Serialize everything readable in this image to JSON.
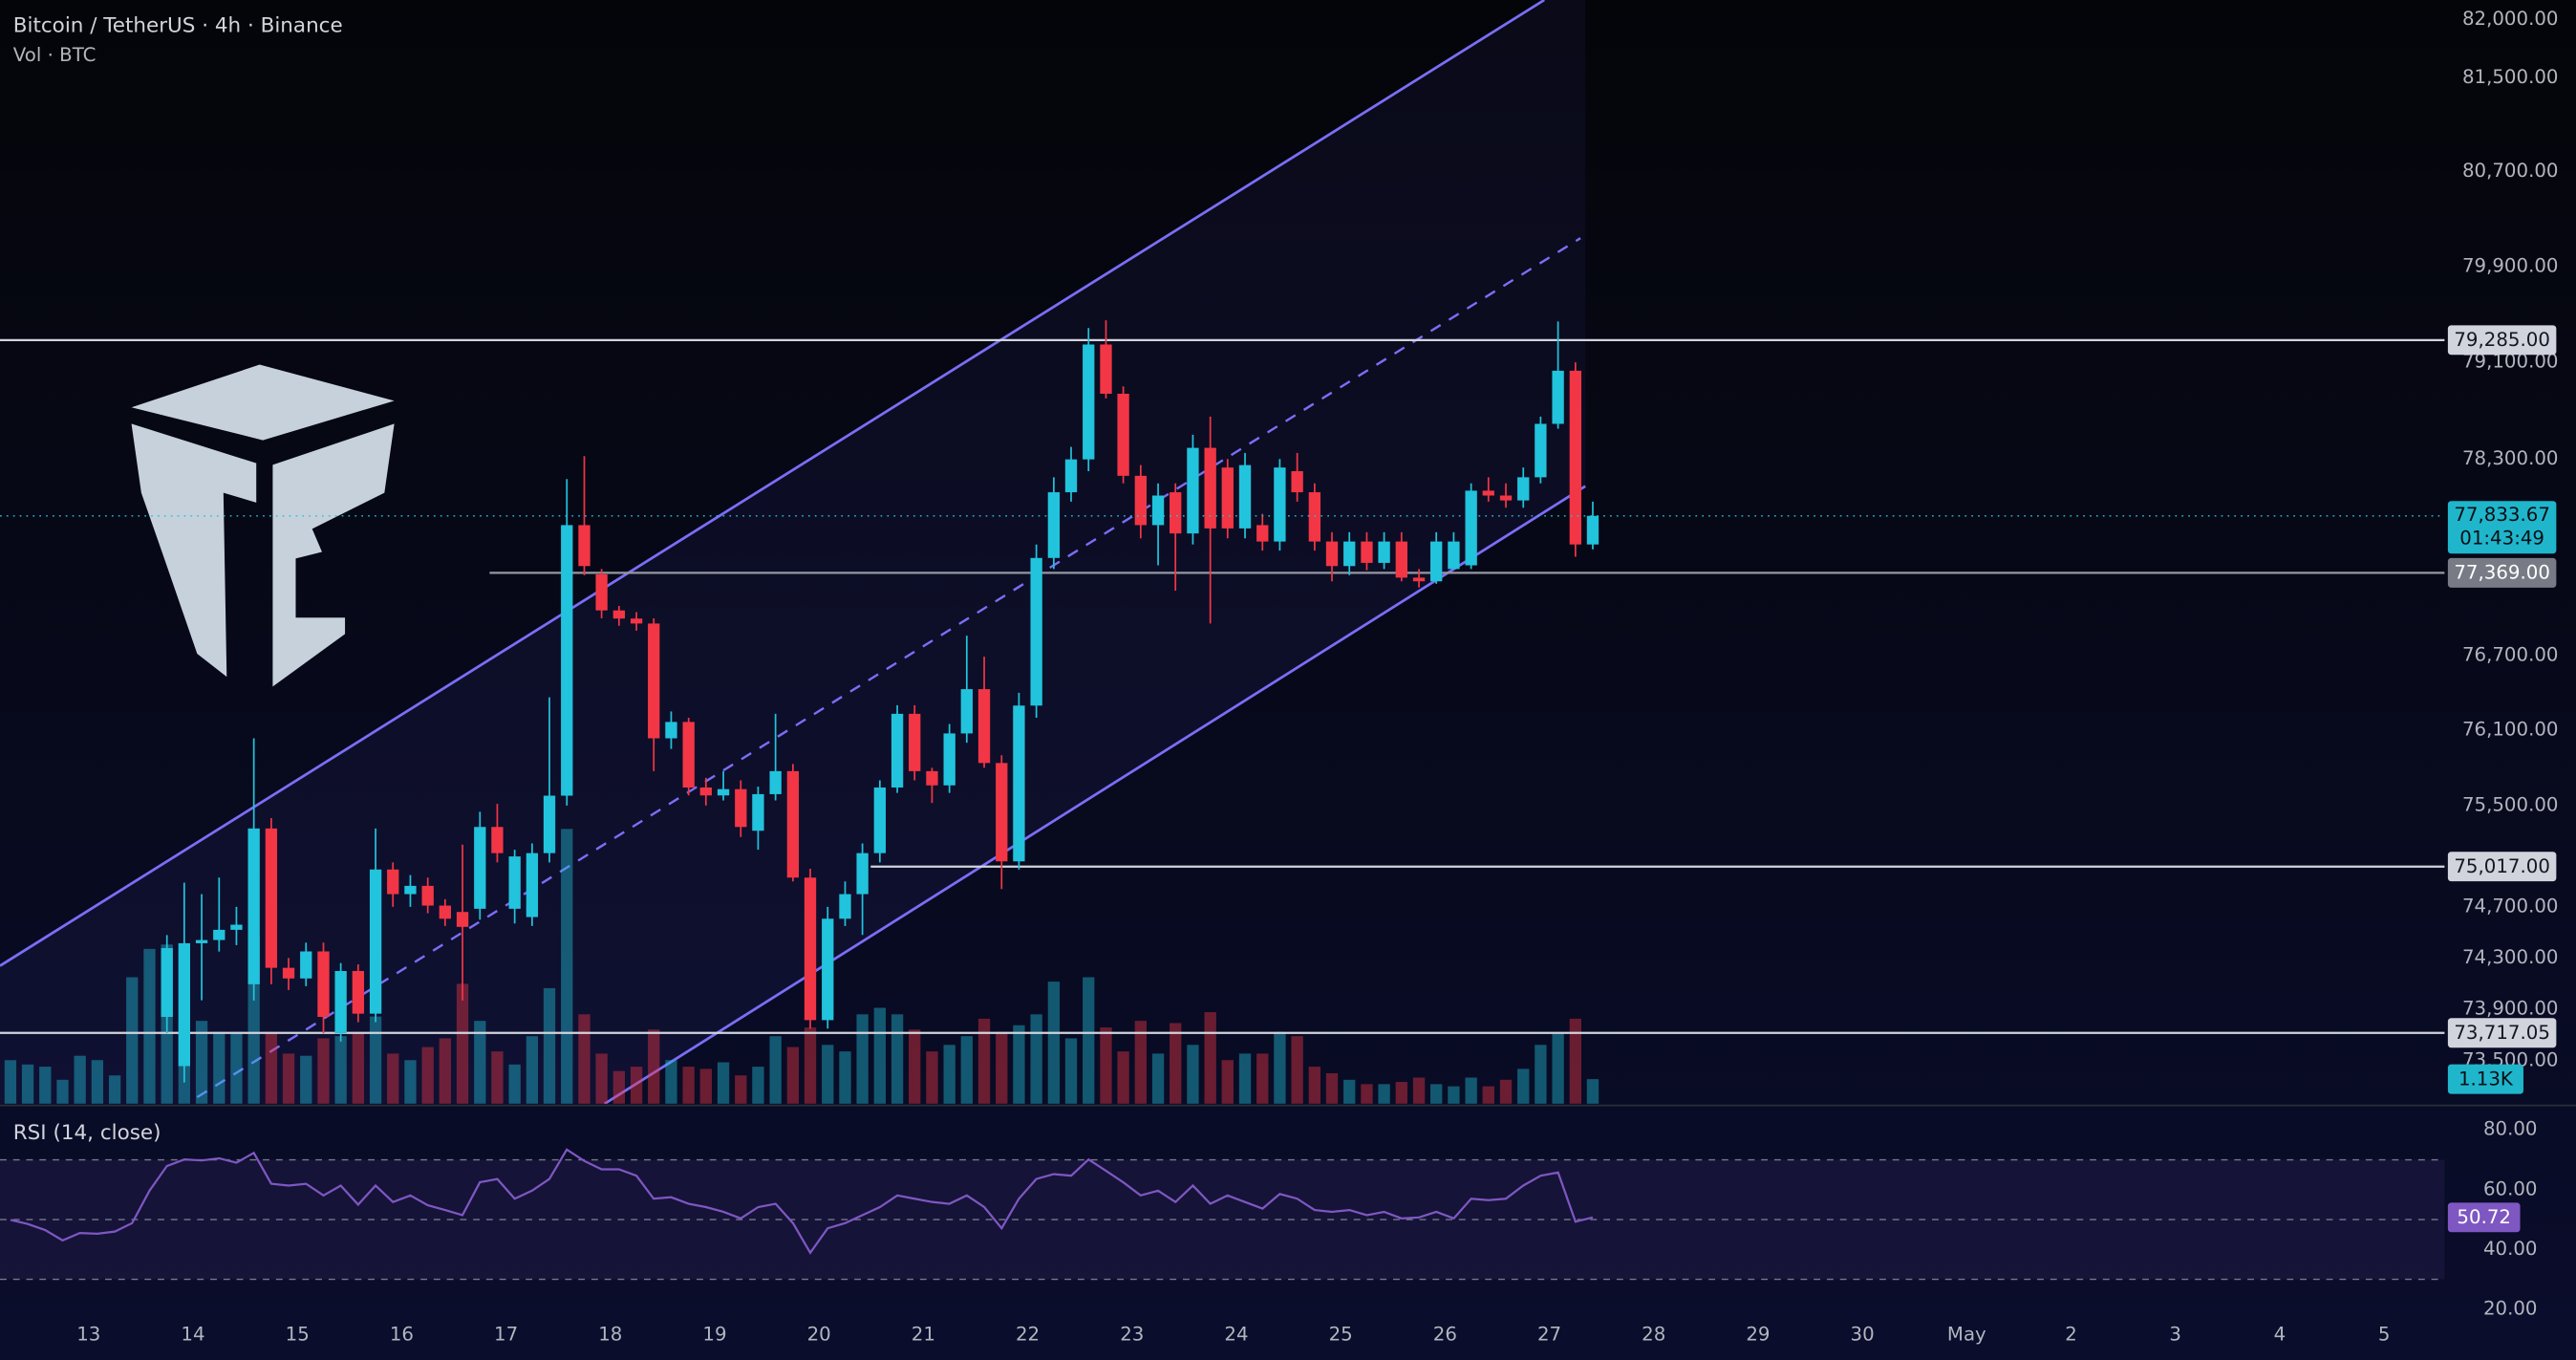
{
  "chart_data": [
    {
      "type": "candlestick",
      "title": "Bitcoin / TetherUS · 4h · Binance",
      "volume_title": "Vol · BTC",
      "log_scale": true,
      "up_color": "#22c3dc",
      "down_color": "#f23645",
      "xlim": [
        12.15,
        35.58
      ],
      "xticks": [
        13,
        14,
        15,
        16,
        17,
        18,
        19,
        20,
        21,
        22,
        23,
        24,
        25,
        26,
        27,
        28,
        29,
        30,
        {
          "value": 31,
          "label": "May"
        },
        {
          "value": 32,
          "label": "2"
        },
        {
          "value": 33,
          "label": "3"
        },
        {
          "value": 34,
          "label": "4"
        },
        {
          "value": 35,
          "label": "5"
        }
      ],
      "ylim": [
        73170,
        82170
      ],
      "yticks": [
        {
          "value": 82000,
          "label": "82,000.00"
        },
        {
          "value": 81500,
          "label": "81,500.00"
        },
        {
          "value": 80700,
          "label": "80,700.00"
        },
        {
          "value": 79900,
          "label": "79,900.00"
        },
        {
          "value": 79100,
          "label": "79,100.00"
        },
        {
          "value": 78300,
          "label": "78,300.00"
        },
        {
          "value": 76700,
          "label": "76,700.00"
        },
        {
          "value": 76100,
          "label": "76,100.00"
        },
        {
          "value": 75500,
          "label": "75,500.00"
        },
        {
          "value": 74700,
          "label": "74,700.00"
        },
        {
          "value": 74300,
          "label": "74,300.00"
        },
        {
          "value": 73900,
          "label": "73,900.00"
        },
        {
          "value": 73500,
          "label": "73,500.00"
        }
      ],
      "levels": [
        {
          "value": 79285,
          "label": "79,285.00",
          "color": "#d1d4dc"
        },
        {
          "value": 77369,
          "label": "77,369.00",
          "color": "#9598a1"
        },
        {
          "value": 75017,
          "label": "75,017.00",
          "color": "#d1d4dc"
        },
        {
          "value": 73717,
          "label": "73,717.05",
          "color": "#d1d4dc"
        }
      ],
      "last_price_label": "77,833.67",
      "countdown": "01:43:49",
      "volume_label": "1.13K",
      "volume_ylim": [
        0,
        50.6
      ],
      "x": [
        12.167,
        12.333,
        12.5,
        12.667,
        12.833,
        13,
        13.167,
        13.333,
        13.5,
        13.667,
        13.833,
        14,
        14.167,
        14.333,
        14.5,
        14.667,
        14.833,
        15,
        15.167,
        15.333,
        15.5,
        15.667,
        15.833,
        16,
        16.167,
        16.333,
        16.5,
        16.667,
        16.833,
        17,
        17.167,
        17.333,
        17.5,
        17.667,
        17.833,
        18,
        18.167,
        18.333,
        18.5,
        18.667,
        18.833,
        19,
        19.167,
        19.333,
        19.5,
        19.667,
        19.833,
        20,
        20.167,
        20.333,
        20.5,
        20.667,
        20.833,
        21,
        21.167,
        21.333,
        21.5,
        21.667,
        21.833,
        22,
        22.167,
        22.333,
        22.5,
        22.667,
        22.833,
        23,
        23.167,
        23.333,
        23.5,
        23.667,
        23.833,
        24,
        24.167,
        24.333,
        24.5,
        24.667,
        24.833,
        25,
        25.167,
        25.333,
        25.5,
        25.667,
        25.833,
        26,
        26.167,
        26.333,
        26.5,
        26.667,
        26.833,
        27,
        27.167,
        27.333
      ],
      "open": [
        null,
        null,
        null,
        null,
        null,
        null,
        null,
        null,
        null,
        73841,
        73460,
        74415,
        74440,
        74520,
        74095,
        75318,
        74223,
        74140,
        74351,
        73714,
        74198,
        73866,
        74994,
        74800,
        74865,
        74710,
        74660,
        74685,
        75330,
        74685,
        74620,
        75123,
        75578,
        77758,
        77357,
        77064,
        76998,
        76958,
        76035,
        76166,
        75643,
        75580,
        75630,
        75300,
        75590,
        75773,
        74930,
        73816,
        74607,
        74800,
        75123,
        75643,
        76231,
        75773,
        75660,
        76074,
        76429,
        75838,
        75058,
        76297,
        77490,
        78027,
        78297,
        79248,
        78839,
        78162,
        77758,
        78027,
        77690,
        78392,
        78230,
        77731,
        77758,
        77624,
        78200,
        78027,
        77624,
        77424,
        77624,
        77450,
        77624,
        77330,
        77300,
        77400,
        77430,
        78040,
        78000,
        77960,
        78150,
        78590,
        79030,
        77600
      ],
      "high": [
        null,
        null,
        null,
        null,
        null,
        null,
        null,
        null,
        null,
        74479,
        74890,
        74800,
        74930,
        74700,
        76035,
        75400,
        74300,
        74420,
        74420,
        74260,
        74250,
        75318,
        75050,
        74950,
        74930,
        74760,
        75190,
        75450,
        75513,
        75150,
        75200,
        76363,
        78135,
        78324,
        77400,
        77100,
        77050,
        77000,
        76250,
        76200,
        75720,
        75773,
        75700,
        75650,
        76231,
        75830,
        75000,
        74700,
        74900,
        75200,
        75700,
        76300,
        76300,
        75800,
        76150,
        76860,
        76690,
        75900,
        76400,
        77600,
        78150,
        78400,
        79385,
        79450,
        78900,
        78250,
        78100,
        78100,
        78500,
        78650,
        78300,
        78350,
        77850,
        78300,
        78350,
        78100,
        77700,
        77700,
        77700,
        77700,
        77700,
        77400,
        77700,
        77700,
        78100,
        78150,
        78100,
        78230,
        78650,
        79440,
        79100,
        77950
      ],
      "low": [
        null,
        null,
        null,
        null,
        null,
        null,
        null,
        null,
        null,
        73714,
        73334,
        73970,
        74350,
        74400,
        73968,
        74095,
        74050,
        74080,
        73714,
        73650,
        73800,
        73800,
        74700,
        74700,
        74650,
        74550,
        73968,
        74600,
        75050,
        74570,
        74550,
        75050,
        75500,
        77350,
        77000,
        76940,
        76900,
        75773,
        75950,
        75580,
        75500,
        75540,
        75250,
        75150,
        75540,
        74900,
        73750,
        73750,
        74550,
        74480,
        75050,
        75600,
        75700,
        75520,
        75600,
        76000,
        75800,
        74840,
        74994,
        76200,
        77400,
        77950,
        78200,
        78800,
        78100,
        77650,
        77430,
        77224,
        77600,
        76958,
        77650,
        77650,
        77550,
        77550,
        77950,
        77550,
        77300,
        77350,
        77390,
        77400,
        77300,
        77250,
        77280,
        77400,
        77400,
        77950,
        77900,
        77900,
        78100,
        78550,
        77500,
        77560
      ],
      "close": [
        null,
        null,
        null,
        null,
        null,
        null,
        null,
        null,
        null,
        74377,
        74415,
        74440,
        74520,
        74560,
        75318,
        74223,
        74140,
        74351,
        73841,
        74198,
        73866,
        74994,
        74800,
        74865,
        74710,
        74607,
        74543,
        75330,
        75123,
        75097,
        75123,
        75578,
        77758,
        77424,
        77064,
        76998,
        76958,
        76035,
        76166,
        75643,
        75580,
        75630,
        75330,
        75590,
        75773,
        74930,
        73816,
        74607,
        74800,
        75123,
        75643,
        76231,
        75773,
        75660,
        76074,
        76429,
        75838,
        75058,
        76297,
        77490,
        78027,
        78297,
        79248,
        78839,
        78162,
        77758,
        78000,
        77690,
        78392,
        77731,
        77731,
        78250,
        77624,
        78230,
        78027,
        77624,
        77424,
        77624,
        77450,
        77624,
        77330,
        77300,
        77624,
        77624,
        78040,
        78000,
        77960,
        78150,
        78590,
        79030,
        77600,
        77833.67
      ],
      "volume": [
        2.0,
        1.8,
        1.7,
        1.1,
        2.2,
        2.0,
        1.3,
        5.8,
        7.1,
        7.3,
        3.8,
        3.8,
        3.3,
        3.3,
        7.7,
        3.3,
        2.3,
        2.2,
        3.0,
        3.1,
        3.3,
        4.0,
        2.3,
        2.0,
        2.6,
        3.0,
        5.5,
        3.8,
        2.4,
        1.8,
        3.1,
        5.3,
        12.6,
        4.1,
        2.3,
        1.5,
        1.7,
        3.4,
        2.0,
        1.7,
        1.6,
        1.9,
        1.3,
        1.7,
        3.1,
        2.6,
        3.5,
        2.7,
        2.4,
        4.1,
        4.4,
        4.1,
        3.4,
        2.4,
        2.7,
        3.1,
        3.9,
        3.3,
        3.6,
        4.1,
        5.6,
        3.0,
        5.8,
        3.5,
        2.4,
        3.8,
        2.3,
        3.7,
        2.7,
        4.2,
        2.0,
        2.3,
        2.3,
        3.3,
        3.1,
        1.7,
        1.4,
        1.1,
        0.9,
        0.9,
        1.0,
        1.2,
        0.9,
        0.8,
        1.2,
        0.8,
        1.1,
        1.6,
        2.7,
        3.2,
        3.9,
        1.13
      ]
    },
    {
      "type": "line",
      "title": "RSI (14, close)",
      "color": "#7e57c2",
      "ylim": [
        18.4,
        87.1
      ],
      "yticks": [
        {
          "value": 80,
          "label": "80.00"
        },
        {
          "value": 60,
          "label": "60.00"
        },
        {
          "value": 40,
          "label": "40.00"
        },
        {
          "value": 20,
          "label": "20.00"
        }
      ],
      "bands": [
        30,
        50,
        70
      ],
      "values": [
        49.9,
        48.5,
        46.5,
        43,
        45.5,
        45.3,
        46.0,
        48.8,
        59.7,
        67.9,
        70.1,
        69.8,
        70.5,
        69.0,
        72.3,
        62.0,
        61.4,
        62.0,
        58.1,
        61.4,
        55.0,
        61.4,
        55.9,
        58.1,
        54.8,
        53.2,
        51.5,
        62.5,
        63.6,
        57.0,
        59.7,
        63.6,
        73.4,
        69.6,
        66.8,
        66.8,
        64.7,
        57.0,
        57.5,
        55.3,
        54.2,
        52.6,
        50.4,
        54.2,
        55.3,
        48.8,
        38.9,
        47.1,
        48.8,
        51.5,
        54.2,
        58.1,
        57.0,
        55.9,
        55.3,
        58.1,
        54.2,
        47.1,
        57.0,
        63.6,
        65.2,
        64.7,
        70.1,
        66.3,
        62.5,
        58.1,
        59.7,
        55.9,
        61.4,
        55.3,
        58.1,
        55.9,
        53.7,
        58.6,
        57.0,
        53.2,
        52.6,
        53.2,
        51.5,
        52.6,
        50.4,
        50.7,
        52.6,
        50.4,
        57.0,
        56.5,
        57.0,
        61.4,
        64.7,
        65.8,
        49.3,
        50.72
      ]
    }
  ]
}
